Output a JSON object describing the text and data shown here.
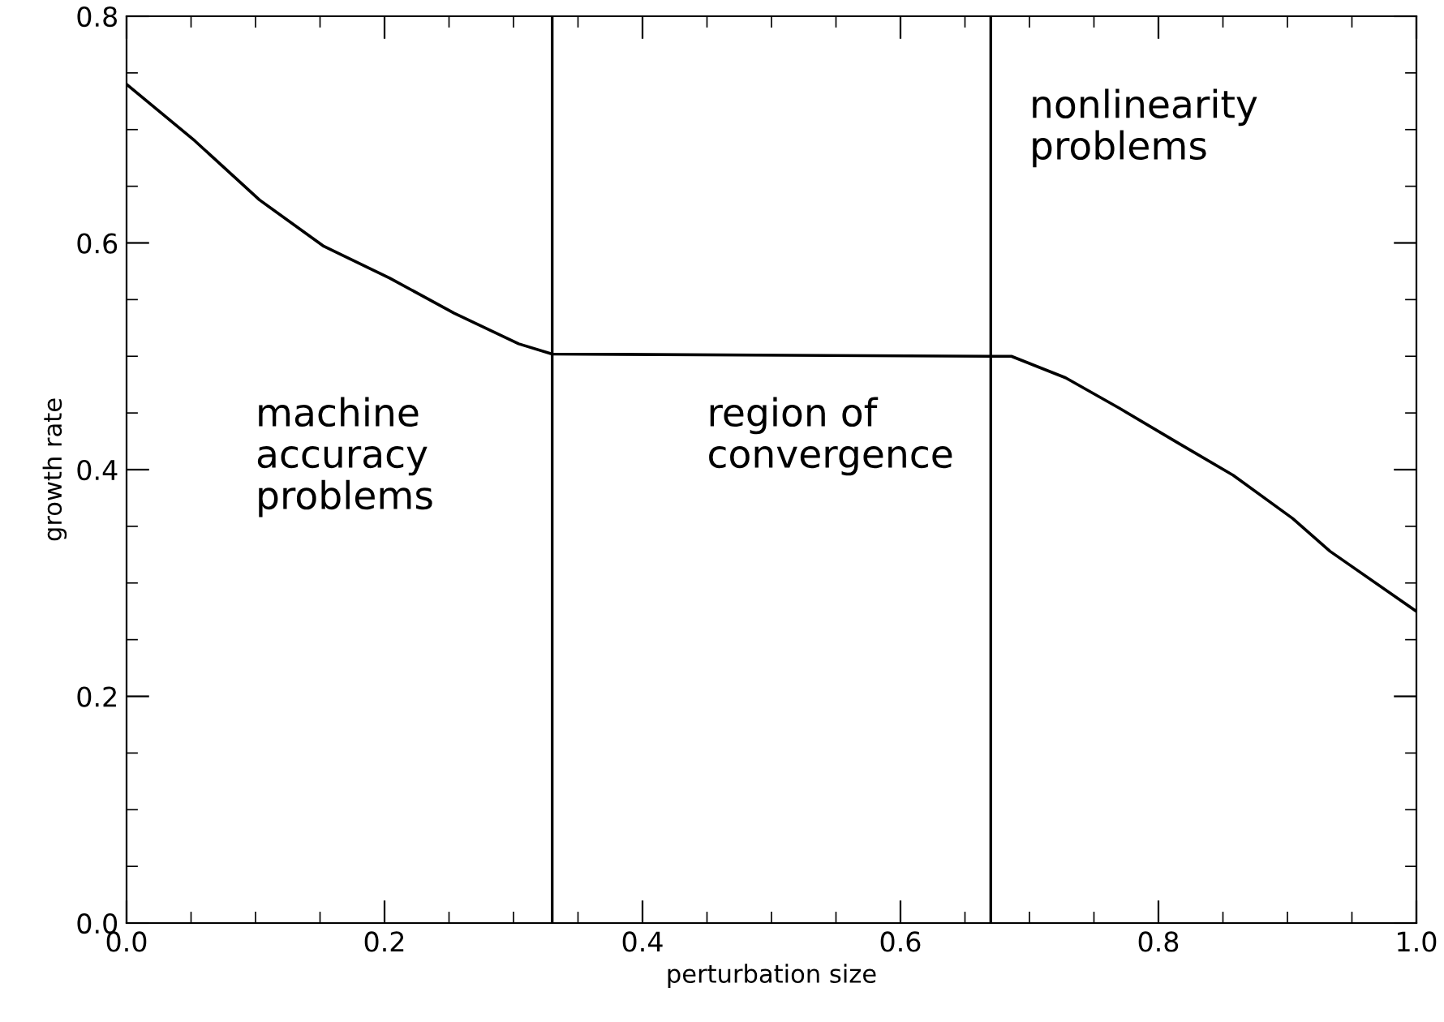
{
  "chart_data": {
    "type": "line",
    "xlabel": "perturbation size",
    "ylabel": "growth rate",
    "x": [
      0.0,
      0.053,
      0.103,
      0.153,
      0.204,
      0.254,
      0.304,
      0.33,
      0.67,
      0.686,
      0.728,
      0.77,
      0.816,
      0.858,
      0.904,
      0.933,
      1.0
    ],
    "series": [
      {
        "color": "#000000",
        "values": [
          0.74,
          0.69,
          0.638,
          0.597,
          0.569,
          0.538,
          0.511,
          0.502,
          0.5,
          0.5,
          0.481,
          0.454,
          0.423,
          0.395,
          0.357,
          0.328,
          0.275
        ]
      }
    ],
    "xlim": [
      0.0,
      1.0
    ],
    "xticks": [
      {
        "value": 0,
        "label": "0.0"
      },
      0.2,
      0.4,
      0.6,
      0.8,
      {
        "value": 1,
        "label": "1.0"
      }
    ],
    "ylim": [
      0.0,
      0.8
    ],
    "yticks": [
      {
        "value": 0,
        "label": "0.0"
      },
      0.2,
      0.4,
      0.6,
      0.8
    ],
    "ref_lines": [
      {
        "axis": "x",
        "value": 0.33,
        "color": "#000000"
      },
      {
        "axis": "x",
        "value": 0.67,
        "color": "#000000"
      }
    ],
    "annotations": [
      "machine\naccuracy\nproblems",
      "region of\nconvergence",
      "nonlinearity\nproblems"
    ],
    "grid": false,
    "legend": false,
    "marker": "none",
    "line_style": "solid"
  }
}
